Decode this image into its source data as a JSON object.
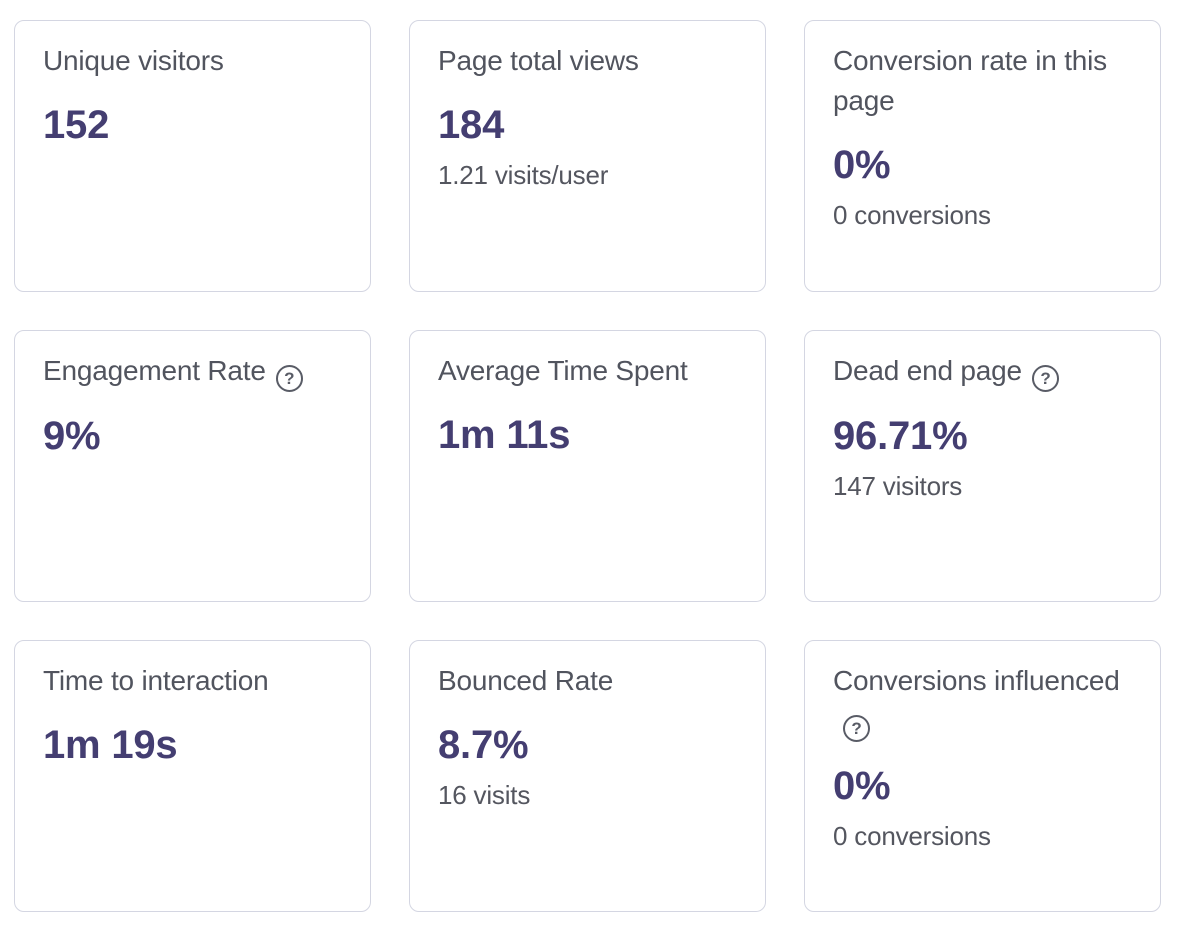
{
  "colors": {
    "page_bg": "#ffffff",
    "card_border": "#d4d6e2",
    "title_text": "#51545e",
    "value_text": "#443e71",
    "subtitle_text": "#54565f",
    "help_icon": "#595c66"
  },
  "help_icon_glyph": "?",
  "cards": [
    {
      "title": "Unique visitors",
      "value": "152",
      "subtitle": null,
      "has_help_icon": false
    },
    {
      "title": "Page total views",
      "value": "184",
      "subtitle": "1.21 visits/user",
      "has_help_icon": false
    },
    {
      "title": "Conversion rate in this page",
      "value": "0%",
      "subtitle": "0 conversions",
      "has_help_icon": false
    },
    {
      "title": "Engagement Rate",
      "value": "9%",
      "subtitle": null,
      "has_help_icon": true
    },
    {
      "title": "Average Time Spent",
      "value": "1m 11s",
      "subtitle": null,
      "has_help_icon": false
    },
    {
      "title": "Dead end page",
      "value": "96.71%",
      "subtitle": "147 visitors",
      "has_help_icon": true
    },
    {
      "title": "Time to interaction",
      "value": "1m 19s",
      "subtitle": null,
      "has_help_icon": false
    },
    {
      "title": "Bounced Rate",
      "value": "8.7%",
      "subtitle": "16 visits",
      "has_help_icon": false
    },
    {
      "title": "Conversions influenced",
      "value": "0%",
      "subtitle": "0 conversions",
      "has_help_icon": true
    }
  ]
}
